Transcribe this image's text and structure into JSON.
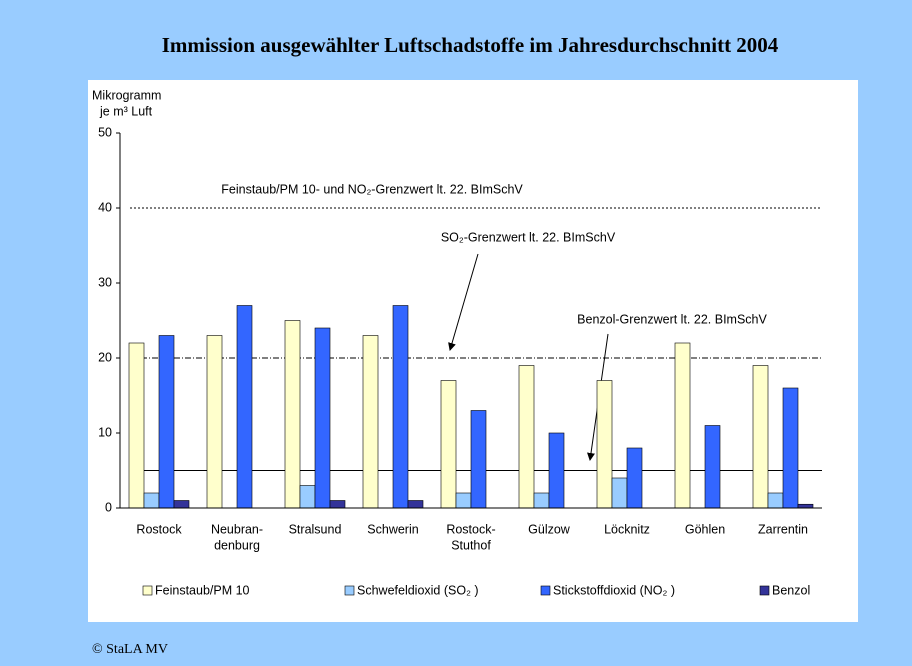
{
  "chart_data": {
    "type": "bar",
    "title": "Immission ausgewählter Luftschadstoffe im Jahresdurchschnitt 2004",
    "y_label": [
      "Mikrogramm",
      "je m³ Luft"
    ],
    "categories": [
      [
        "Rostock"
      ],
      [
        "Neubran-",
        "denburg"
      ],
      [
        "Stralsund"
      ],
      [
        "Schwerin"
      ],
      [
        "Rostock-",
        "Stuthof"
      ],
      [
        "Gülzow"
      ],
      [
        "Löcknitz"
      ],
      [
        "Göhlen"
      ],
      [
        "Zarrentin"
      ]
    ],
    "series": [
      {
        "name": "Feinstaub/PM 10",
        "color": "#ffffcc",
        "values": [
          22,
          23,
          25,
          23,
          17,
          19,
          17,
          22,
          19
        ]
      },
      {
        "name": "Schwefeldioxid (SO₂ )",
        "color": "#99ccff",
        "values": [
          2,
          null,
          3,
          null,
          2,
          2,
          4,
          null,
          2
        ]
      },
      {
        "name": "Stickstoffdioxid (NO₂ )",
        "color": "#3366ff",
        "values": [
          23,
          27,
          24,
          27,
          13,
          10,
          8,
          11,
          16
        ]
      },
      {
        "name": "Benzol",
        "color": "#333399",
        "values": [
          1,
          null,
          1,
          1,
          null,
          null,
          null,
          null,
          0.5
        ]
      }
    ],
    "reference_lines": [
      {
        "value": 40,
        "label": "Feinstaub/PM 10- und NO₂-Grenzwert lt. 22. BImSchV",
        "style": "dotted"
      },
      {
        "value": 20,
        "label": "SO₂-Grenzwert lt. 22. BImSchV",
        "style": "dashdot"
      },
      {
        "value": 5,
        "label": "Benzol-Grenzwert lt. 22. BImSchV",
        "style": "solid"
      }
    ],
    "ylim": [
      0,
      50
    ],
    "yticks": [
      0,
      10,
      20,
      30,
      40,
      50
    ],
    "footer": "© StaLA MV"
  }
}
